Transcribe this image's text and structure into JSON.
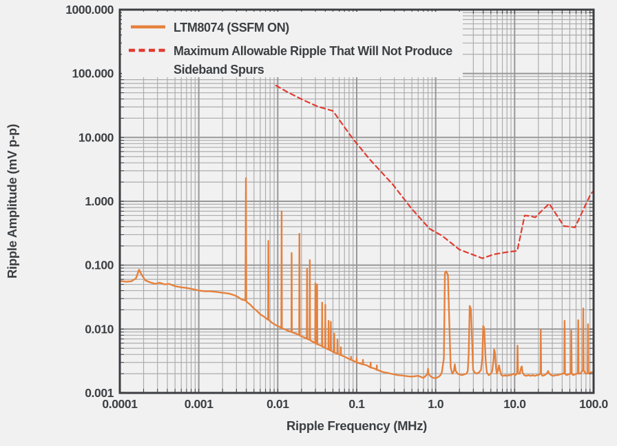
{
  "colors": {
    "background": "#F1F1F2",
    "grid_minor": "#ACACAC",
    "grid_major": "#979797",
    "frame": "#3B3D40",
    "text": "#3C4043"
  },
  "legend": {
    "entry1_label": "LTM8074 (SSFM ON)",
    "entry2_line1": "Maximum Allowable Ripple That Will Not Produce",
    "entry2_line2": "Sideband Spurs"
  },
  "chart_data": {
    "type": "line",
    "title": "",
    "xlabel": "Ripple Frequency (MHz)",
    "ylabel": "Ripple Amplitude (mV p-p)",
    "xscale": "log",
    "yscale": "log",
    "xlim": [
      0.0001,
      100
    ],
    "ylim": [
      0.001,
      1000
    ],
    "grid": "on",
    "legend_position": "top-left",
    "x_ticks": [
      {
        "v": 0.0001,
        "label": "0.0001"
      },
      {
        "v": 0.001,
        "label": "0.001"
      },
      {
        "v": 0.01,
        "label": "0.01"
      },
      {
        "v": 0.1,
        "label": "0.1"
      },
      {
        "v": 1,
        "label": "1.0"
      },
      {
        "v": 10,
        "label": "10.0"
      },
      {
        "v": 100,
        "label": "100.0"
      }
    ],
    "y_ticks": [
      {
        "v": 1000,
        "label": "1000.000"
      },
      {
        "v": 100,
        "label": "100.000"
      },
      {
        "v": 10,
        "label": "10.000"
      },
      {
        "v": 1,
        "label": "1.000"
      },
      {
        "v": 0.1,
        "label": "0.100"
      },
      {
        "v": 0.01,
        "label": "0.010"
      },
      {
        "v": 0.001,
        "label": "0.001"
      }
    ],
    "series": [
      {
        "name": "LTM8074 (SSFM ON)",
        "style": "solid",
        "color": "#E5813C",
        "width": 2.4,
        "points": [
          [
            0.0001,
            0.057
          ],
          [
            0.00012,
            0.055
          ],
          [
            0.00014,
            0.056
          ],
          [
            0.00016,
            0.062
          ],
          [
            0.000175,
            0.085
          ],
          [
            0.00019,
            0.07
          ],
          [
            0.00021,
            0.058
          ],
          [
            0.00024,
            0.054
          ],
          [
            0.00028,
            0.051
          ],
          [
            0.00032,
            0.053
          ],
          [
            0.00037,
            0.05
          ],
          [
            0.00042,
            0.051
          ],
          [
            0.0005,
            0.047
          ],
          [
            0.0006,
            0.045
          ],
          [
            0.0007,
            0.044
          ],
          [
            0.00085,
            0.042
          ],
          [
            0.001,
            0.04
          ],
          [
            0.0012,
            0.039
          ],
          [
            0.0014,
            0.039
          ],
          [
            0.0017,
            0.038
          ],
          [
            0.002,
            0.037
          ],
          [
            0.0024,
            0.036
          ],
          [
            0.0028,
            0.034
          ],
          [
            0.0031,
            0.032
          ],
          [
            0.0035,
            0.029
          ],
          [
            0.0039,
            0.028
          ],
          [
            0.00395,
            2.3
          ],
          [
            0.004,
            0.027
          ],
          [
            0.0045,
            0.024
          ],
          [
            0.005,
            0.021
          ],
          [
            0.0055,
            0.019
          ],
          [
            0.006,
            0.017
          ],
          [
            0.0065,
            0.016
          ],
          [
            0.007,
            0.015
          ],
          [
            0.00755,
            0.014
          ],
          [
            0.0076,
            0.24
          ],
          [
            0.00765,
            0.014
          ],
          [
            0.0085,
            0.0125
          ],
          [
            0.0095,
            0.0115
          ],
          [
            0.0111,
            0.0105
          ],
          [
            0.0112,
            0.7
          ],
          [
            0.0113,
            0.0103
          ],
          [
            0.0125,
            0.0098
          ],
          [
            0.014,
            0.0092
          ],
          [
            0.0149,
            0.009
          ],
          [
            0.015,
            0.155
          ],
          [
            0.0151,
            0.0089
          ],
          [
            0.017,
            0.0085
          ],
          [
            0.0187,
            0.008
          ],
          [
            0.0188,
            0.31
          ],
          [
            0.019,
            0.0079
          ],
          [
            0.021,
            0.0075
          ],
          [
            0.0233,
            0.0071
          ],
          [
            0.0235,
            0.088
          ],
          [
            0.0237,
            0.007
          ],
          [
            0.0253,
            0.0068
          ],
          [
            0.0255,
            0.12
          ],
          [
            0.0257,
            0.0067
          ],
          [
            0.028,
            0.0063
          ],
          [
            0.0298,
            0.006
          ],
          [
            0.03,
            0.052
          ],
          [
            0.0302,
            0.006
          ],
          [
            0.0313,
            0.0058
          ],
          [
            0.0315,
            0.05
          ],
          [
            0.0318,
            0.0058
          ],
          [
            0.034,
            0.0056
          ],
          [
            0.0363,
            0.0054
          ],
          [
            0.0365,
            0.026
          ],
          [
            0.0368,
            0.0053
          ],
          [
            0.0398,
            0.0051
          ],
          [
            0.04,
            0.024
          ],
          [
            0.0403,
            0.005
          ],
          [
            0.0437,
            0.0048
          ],
          [
            0.044,
            0.0135
          ],
          [
            0.0443,
            0.0048
          ],
          [
            0.0467,
            0.0046
          ],
          [
            0.047,
            0.013
          ],
          [
            0.0473,
            0.0046
          ],
          [
            0.0517,
            0.0043
          ],
          [
            0.052,
            0.0085
          ],
          [
            0.0523,
            0.0043
          ],
          [
            0.0566,
            0.0041
          ],
          [
            0.057,
            0.0068
          ],
          [
            0.0574,
            0.0041
          ],
          [
            0.0626,
            0.0039
          ],
          [
            0.063,
            0.0052
          ],
          [
            0.0634,
            0.0039
          ],
          [
            0.07,
            0.0037
          ],
          [
            0.08,
            0.0034
          ],
          [
            0.0845,
            0.0033
          ],
          [
            0.085,
            0.0037
          ],
          [
            0.0855,
            0.0033
          ],
          [
            0.09,
            0.0032
          ],
          [
            0.0995,
            0.003
          ],
          [
            0.1,
            0.0035
          ],
          [
            0.1005,
            0.003
          ],
          [
            0.11,
            0.0029
          ],
          [
            0.119,
            0.0028
          ],
          [
            0.12,
            0.0033
          ],
          [
            0.121,
            0.0028
          ],
          [
            0.135,
            0.0027
          ],
          [
            0.149,
            0.0025
          ],
          [
            0.15,
            0.003
          ],
          [
            0.151,
            0.0025
          ],
          [
            0.17,
            0.0024
          ],
          [
            0.179,
            0.0023
          ],
          [
            0.18,
            0.0027
          ],
          [
            0.181,
            0.0023
          ],
          [
            0.2,
            0.0022
          ],
          [
            0.22,
            0.0021
          ],
          [
            0.25,
            0.00205
          ],
          [
            0.27,
            0.002
          ],
          [
            0.3,
            0.00195
          ],
          [
            0.33,
            0.0019
          ],
          [
            0.37,
            0.00188
          ],
          [
            0.4,
            0.00185
          ],
          [
            0.45,
            0.00182
          ],
          [
            0.5,
            0.0018
          ],
          [
            0.55,
            0.00183
          ],
          [
            0.6,
            0.00185
          ],
          [
            0.65,
            0.00178
          ],
          [
            0.7,
            0.00172
          ],
          [
            0.75,
            0.00185
          ],
          [
            0.79,
            0.002
          ],
          [
            0.8,
            0.0024
          ],
          [
            0.81,
            0.002
          ],
          [
            0.85,
            0.00185
          ],
          [
            0.9,
            0.00175
          ],
          [
            0.95,
            0.00172
          ],
          [
            1.0,
            0.0017
          ],
          [
            1.05,
            0.00175
          ],
          [
            1.1,
            0.0018
          ],
          [
            1.15,
            0.0019
          ],
          [
            1.2,
            0.0021
          ],
          [
            1.27,
            0.0035
          ],
          [
            1.31,
            0.075
          ],
          [
            1.36,
            0.08
          ],
          [
            1.43,
            0.07
          ],
          [
            1.5,
            0.009
          ],
          [
            1.55,
            0.0025
          ],
          [
            1.62,
            0.002
          ],
          [
            1.7,
            0.0022
          ],
          [
            1.75,
            0.0028
          ],
          [
            1.8,
            0.0022
          ],
          [
            1.9,
            0.002
          ],
          [
            2.0,
            0.00195
          ],
          [
            2.15,
            0.0019
          ],
          [
            2.3,
            0.00195
          ],
          [
            2.45,
            0.002
          ],
          [
            2.55,
            0.0022
          ],
          [
            2.62,
            0.004
          ],
          [
            2.7,
            0.023
          ],
          [
            2.8,
            0.0205
          ],
          [
            2.9,
            0.006
          ],
          [
            2.98,
            0.0023
          ],
          [
            3.1,
            0.0021
          ],
          [
            3.3,
            0.002
          ],
          [
            3.55,
            0.0021
          ],
          [
            3.75,
            0.0023
          ],
          [
            3.9,
            0.0035
          ],
          [
            4.0,
            0.0112
          ],
          [
            4.12,
            0.0102
          ],
          [
            4.3,
            0.0032
          ],
          [
            4.45,
            0.0021
          ],
          [
            4.7,
            0.0019
          ],
          [
            5.0,
            0.002
          ],
          [
            5.2,
            0.0022
          ],
          [
            5.4,
            0.0032
          ],
          [
            5.5,
            0.0048
          ],
          [
            5.65,
            0.0042
          ],
          [
            5.8,
            0.0025
          ],
          [
            5.95,
            0.002
          ],
          [
            6.2,
            0.0023
          ],
          [
            6.35,
            0.0027
          ],
          [
            6.55,
            0.0022
          ],
          [
            6.8,
            0.0019
          ],
          [
            7.2,
            0.00185
          ],
          [
            7.6,
            0.0019
          ],
          [
            8.0,
            0.00185
          ],
          [
            8.5,
            0.0019
          ],
          [
            9.0,
            0.0019
          ],
          [
            9.6,
            0.002
          ],
          [
            10.2,
            0.0019
          ],
          [
            10.75,
            0.002
          ],
          [
            10.9,
            0.0055
          ],
          [
            11.05,
            0.002
          ],
          [
            11.6,
            0.002
          ],
          [
            12.1,
            0.0025
          ],
          [
            12.35,
            0.0026
          ],
          [
            12.6,
            0.0021
          ],
          [
            13.2,
            0.0019
          ],
          [
            14,
            0.00185
          ],
          [
            15,
            0.0019
          ],
          [
            16,
            0.00185
          ],
          [
            17,
            0.0019
          ],
          [
            18,
            0.00185
          ],
          [
            19,
            0.0019
          ],
          [
            20,
            0.0019
          ],
          [
            21.2,
            0.002
          ],
          [
            21.45,
            0.0097
          ],
          [
            21.7,
            0.002
          ],
          [
            22.5,
            0.00185
          ],
          [
            24,
            0.0019
          ],
          [
            25.5,
            0.002
          ],
          [
            26.5,
            0.0022
          ],
          [
            27.5,
            0.002
          ],
          [
            29,
            0.0019
          ],
          [
            31,
            0.00185
          ],
          [
            33,
            0.0019
          ],
          [
            35,
            0.0019
          ],
          [
            37.5,
            0.00195
          ],
          [
            40,
            0.002
          ],
          [
            42.4,
            0.002
          ],
          [
            42.9,
            0.0135
          ],
          [
            43.5,
            0.002
          ],
          [
            45.5,
            0.0019
          ],
          [
            48,
            0.00195
          ],
          [
            50.5,
            0.002
          ],
          [
            51.6,
            0.002
          ],
          [
            52.2,
            0.0095
          ],
          [
            52.9,
            0.002
          ],
          [
            55,
            0.0019
          ],
          [
            58,
            0.00195
          ],
          [
            61,
            0.002
          ],
          [
            63.2,
            0.002
          ],
          [
            63.9,
            0.0138
          ],
          [
            64.7,
            0.002
          ],
          [
            67,
            0.002
          ],
          [
            70,
            0.0021
          ],
          [
            72,
            0.0022
          ],
          [
            73.2,
            0.0023
          ],
          [
            74.0,
            0.021
          ],
          [
            74.9,
            0.0023
          ],
          [
            77,
            0.0021
          ],
          [
            80,
            0.002
          ],
          [
            82.5,
            0.002
          ],
          [
            84.2,
            0.0021
          ],
          [
            85.0,
            0.0119
          ],
          [
            85.9,
            0.0021
          ],
          [
            88,
            0.002
          ],
          [
            91,
            0.0021
          ],
          [
            94,
            0.0021
          ],
          [
            97,
            0.0021
          ],
          [
            100,
            0.0022
          ]
        ]
      },
      {
        "name": "Maximum Allowable Ripple That Will Not Produce Sideband Spurs",
        "style": "dashed",
        "color": "#E23B2E",
        "width": 2.2,
        "points": [
          [
            0.0095,
            65
          ],
          [
            0.013,
            52
          ],
          [
            0.021,
            38.5
          ],
          [
            0.032,
            30.5
          ],
          [
            0.05,
            26
          ],
          [
            0.07,
            14.5
          ],
          [
            0.09,
            9.4
          ],
          [
            0.147,
            4.5
          ],
          [
            0.29,
            1.8
          ],
          [
            0.49,
            0.78
          ],
          [
            0.84,
            0.37
          ],
          [
            1.2,
            0.29
          ],
          [
            2.0,
            0.175
          ],
          [
            3.0,
            0.145
          ],
          [
            3.9,
            0.128
          ],
          [
            5.5,
            0.148
          ],
          [
            8.0,
            0.16
          ],
          [
            10.8,
            0.168
          ],
          [
            13.4,
            0.6
          ],
          [
            16.0,
            0.585
          ],
          [
            18.3,
            0.56
          ],
          [
            22.3,
            0.72
          ],
          [
            27.4,
            0.92
          ],
          [
            33.5,
            0.63
          ],
          [
            42.0,
            0.41
          ],
          [
            50.0,
            0.4
          ],
          [
            58.0,
            0.39
          ],
          [
            64.0,
            0.5
          ],
          [
            77.0,
            0.82
          ],
          [
            92.0,
            1.3
          ],
          [
            100.0,
            1.45
          ]
        ]
      }
    ]
  }
}
